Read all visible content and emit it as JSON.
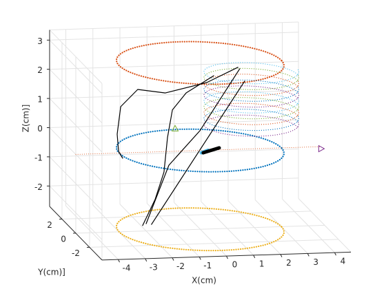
{
  "chart_data": {
    "type": "line3d",
    "xlabel": "X(cm)",
    "ylabel": "Y(cm)]",
    "zlabel": "Z(cm)]",
    "xlim": [
      -4.6,
      4.6
    ],
    "ylim": [
      -3.8,
      3.8
    ],
    "zlim": [
      -2.7,
      3.35
    ],
    "xticks": [
      -4,
      -3,
      -2,
      -1,
      0,
      1,
      2,
      3,
      4
    ],
    "yticks": [
      -2,
      0,
      2
    ],
    "zticks": [
      -2,
      -1,
      0,
      1,
      2,
      3
    ],
    "grid": true,
    "circles": [
      {
        "z": 3,
        "radius": 3,
        "color": "#d95319"
      },
      {
        "z": 0,
        "radius": 3,
        "color": "#0072bd"
      },
      {
        "z": -2.7,
        "radius": 3,
        "color": "#edb120"
      }
    ],
    "helix": {
      "center_x": 2.4,
      "center_y": 2,
      "radius": 1.7,
      "zrange": [
        0.2,
        2.2
      ],
      "turns": 10,
      "colors": [
        "#7e2f8e",
        "#0072bd",
        "#d95319",
        "#77ac30",
        "#4dbeee"
      ]
    },
    "series": [
      {
        "color": "#000000",
        "width": 1.2,
        "x": [
          1.39,
          0.24,
          -1.29,
          -2.31,
          -2.94,
          -3.07,
          -3.02,
          -2.87
        ],
        "y": [
          0,
          0,
          0,
          0,
          0,
          0,
          0,
          0
        ],
        "z": [
          2.81,
          2.32,
          2.01,
          2.16,
          1.59,
          0.65,
          0.06,
          -0.18
        ]
      },
      {
        "color": "#000000",
        "width": 1.2,
        "x": [
          0.5,
          -0.52,
          -1.03,
          -1.21,
          -1.34,
          -1.67,
          -2.13
        ],
        "y": [
          0,
          0,
          0,
          0,
          0,
          0,
          0
        ],
        "z": [
          2.55,
          1.99,
          1.42,
          0.48,
          -0.7,
          -1.63,
          -2.51
        ]
      },
      {
        "color": "#000000",
        "width": 1.2,
        "x": [
          1.64,
          -1.8
        ],
        "y": [
          0,
          0
        ],
        "z": [
          2.33,
          -2.48
        ]
      },
      {
        "color": "#000000",
        "width": 1.2,
        "x": [
          1.46,
          -0.01,
          -1.16,
          -2.0
        ],
        "y": [
          0,
          0,
          0,
          0
        ],
        "z": [
          2.76,
          0.68,
          -0.47,
          -2.45
        ]
      },
      {
        "color": "#d95319",
        "width": 1,
        "dotted": true,
        "x": [
          -4.6,
          4.47
        ],
        "y": [
          0,
          0
        ],
        "z": [
          0,
          0
        ]
      },
      {
        "color": "#4dbeee",
        "width": 5,
        "x": [
          0.04,
          0.29
        ],
        "y": [
          0,
          0
        ],
        "z": [
          -0.08,
          0
        ]
      },
      {
        "color": "#000000",
        "width": 5,
        "x": [
          0.11,
          0.7
        ],
        "y": [
          0,
          0
        ],
        "z": [
          -0.08,
          0.07
        ]
      }
    ],
    "markers": [
      {
        "shape": "triangle-up",
        "color": "#77ac30",
        "x": -0.93,
        "y": 0,
        "z": 0.78
      },
      {
        "shape": "triangle-right",
        "color": "#7e2f8e",
        "x": 4.47,
        "y": 0,
        "z": -0.07
      }
    ]
  }
}
